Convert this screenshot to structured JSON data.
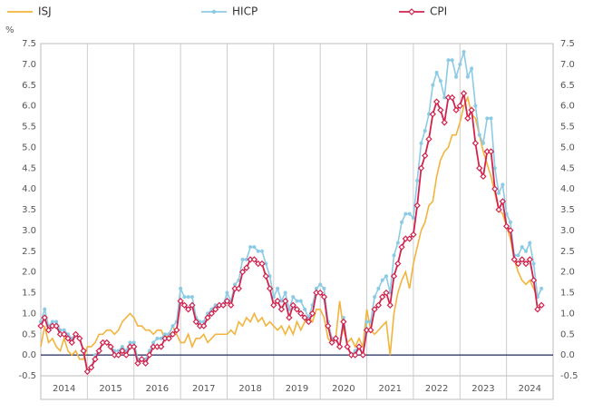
{
  "chart_data": {
    "type": "line",
    "ylabel": "%",
    "x": [
      2014,
      2014.083,
      2014.167,
      2014.25,
      2014.333,
      2014.417,
      2014.5,
      2014.583,
      2014.667,
      2014.75,
      2014.833,
      2014.917,
      2015,
      2015.083,
      2015.167,
      2015.25,
      2015.333,
      2015.417,
      2015.5,
      2015.583,
      2015.667,
      2015.75,
      2015.833,
      2015.917,
      2016,
      2016.083,
      2016.167,
      2016.25,
      2016.333,
      2016.417,
      2016.5,
      2016.583,
      2016.667,
      2016.75,
      2016.833,
      2016.917,
      2017,
      2017.083,
      2017.167,
      2017.25,
      2017.333,
      2017.417,
      2017.5,
      2017.583,
      2017.667,
      2017.75,
      2017.833,
      2017.917,
      2018,
      2018.083,
      2018.167,
      2018.25,
      2018.333,
      2018.417,
      2018.5,
      2018.583,
      2018.667,
      2018.75,
      2018.833,
      2018.917,
      2019,
      2019.083,
      2019.167,
      2019.25,
      2019.333,
      2019.417,
      2019.5,
      2019.583,
      2019.667,
      2019.75,
      2019.833,
      2019.917,
      2020,
      2020.083,
      2020.167,
      2020.25,
      2020.333,
      2020.417,
      2020.5,
      2020.583,
      2020.667,
      2020.75,
      2020.833,
      2020.917,
      2021,
      2021.083,
      2021.167,
      2021.25,
      2021.333,
      2021.417,
      2021.5,
      2021.583,
      2021.667,
      2021.75,
      2021.833,
      2021.917,
      2022,
      2022.083,
      2022.167,
      2022.25,
      2022.333,
      2022.417,
      2022.5,
      2022.583,
      2022.667,
      2022.75,
      2022.833,
      2022.917,
      2023,
      2023.083,
      2023.167,
      2023.25,
      2023.333,
      2023.417,
      2023.5,
      2023.583,
      2023.667,
      2023.75,
      2023.833,
      2023.917,
      2024,
      2024.083,
      2024.167,
      2024.25,
      2024.333,
      2024.417,
      2024.5,
      2024.583,
      2024.667,
      2024.75
    ],
    "series": [
      {
        "name": "ISJ",
        "color": "#f2b43c",
        "marker": "none",
        "values": [
          0.2,
          0.7,
          0.3,
          0.4,
          0.2,
          0.1,
          0.4,
          0.1,
          0.0,
          0.1,
          -0.1,
          -0.1,
          0.2,
          0.2,
          0.3,
          0.5,
          0.5,
          0.6,
          0.6,
          0.5,
          0.6,
          0.8,
          0.9,
          1.0,
          0.9,
          0.7,
          0.7,
          0.6,
          0.6,
          0.5,
          0.6,
          0.6,
          0.4,
          0.5,
          0.7,
          0.5,
          0.3,
          0.3,
          0.5,
          0.2,
          0.4,
          0.4,
          0.5,
          0.3,
          0.4,
          0.5,
          0.5,
          0.5,
          0.5,
          0.6,
          0.5,
          0.8,
          0.7,
          0.9,
          0.8,
          1.0,
          0.8,
          0.9,
          0.7,
          0.8,
          0.7,
          0.6,
          0.7,
          0.5,
          0.7,
          0.5,
          0.8,
          0.6,
          0.8,
          0.9,
          0.8,
          1.1,
          1.1,
          0.9,
          0.4,
          0.3,
          0.4,
          1.3,
          0.6,
          0.3,
          0.4,
          0.2,
          0.4,
          0.2,
          1.1,
          0.6,
          0.5,
          0.6,
          0.7,
          0.8,
          0.0,
          1.0,
          1.5,
          1.8,
          2.0,
          1.6,
          2.2,
          2.6,
          3.0,
          3.2,
          3.6,
          3.7,
          4.3,
          4.7,
          4.9,
          5.0,
          5.3,
          5.3,
          5.6,
          6.0,
          6.2,
          5.8,
          5.7,
          5.3,
          4.9,
          4.6,
          4.3,
          3.9,
          3.5,
          3.4,
          3.1,
          2.8,
          2.3,
          2.0,
          1.8,
          1.7,
          1.8,
          1.6,
          1.4,
          1.6
        ]
      },
      {
        "name": "HICP",
        "color": "#8ccbe6",
        "marker": "circle",
        "values": [
          0.8,
          1.1,
          0.7,
          0.8,
          0.8,
          0.6,
          0.6,
          0.5,
          0.4,
          0.5,
          0.4,
          0.1,
          -0.4,
          -0.3,
          0.0,
          0.1,
          0.3,
          0.3,
          0.2,
          0.1,
          0.1,
          0.2,
          0.1,
          0.3,
          0.3,
          -0.1,
          -0.1,
          -0.1,
          0.1,
          0.3,
          0.4,
          0.4,
          0.5,
          0.5,
          0.7,
          0.8,
          1.6,
          1.4,
          1.4,
          1.4,
          0.9,
          0.8,
          0.8,
          1.0,
          1.1,
          1.2,
          1.2,
          1.2,
          1.5,
          1.3,
          1.7,
          1.8,
          2.3,
          2.3,
          2.6,
          2.6,
          2.5,
          2.5,
          2.2,
          1.9,
          1.4,
          1.6,
          1.3,
          1.5,
          1.1,
          1.4,
          1.3,
          1.3,
          1.1,
          0.9,
          1.2,
          1.6,
          1.7,
          1.6,
          0.8,
          0.4,
          0.4,
          0.2,
          0.9,
          0.2,
          0.0,
          0.1,
          0.2,
          0.0,
          0.8,
          0.8,
          1.4,
          1.6,
          1.8,
          1.9,
          1.5,
          2.4,
          2.7,
          3.2,
          3.4,
          3.4,
          3.3,
          4.2,
          5.1,
          5.4,
          5.8,
          6.5,
          6.8,
          6.6,
          6.2,
          7.1,
          7.1,
          6.7,
          7.0,
          7.3,
          6.7,
          6.9,
          6.0,
          5.3,
          5.1,
          5.7,
          5.7,
          4.5,
          3.9,
          4.1,
          3.4,
          3.2,
          2.4,
          2.4,
          2.6,
          2.5,
          2.7,
          2.2,
          1.4,
          1.6
        ]
      },
      {
        "name": "CPI",
        "color": "#d1234d",
        "marker": "diamond",
        "values": [
          0.7,
          0.9,
          0.6,
          0.7,
          0.7,
          0.5,
          0.5,
          0.4,
          0.3,
          0.5,
          0.4,
          0.1,
          -0.4,
          -0.3,
          -0.1,
          0.1,
          0.3,
          0.3,
          0.2,
          0.0,
          0.0,
          0.1,
          0.0,
          0.2,
          0.2,
          -0.2,
          -0.1,
          -0.2,
          0.0,
          0.2,
          0.2,
          0.2,
          0.4,
          0.4,
          0.5,
          0.6,
          1.3,
          1.2,
          1.1,
          1.2,
          0.8,
          0.7,
          0.7,
          0.9,
          1.0,
          1.1,
          1.2,
          1.2,
          1.3,
          1.2,
          1.6,
          1.6,
          2.0,
          2.1,
          2.3,
          2.3,
          2.2,
          2.2,
          1.9,
          1.6,
          1.2,
          1.3,
          1.1,
          1.3,
          0.9,
          1.2,
          1.1,
          1.0,
          0.9,
          0.8,
          1.0,
          1.5,
          1.5,
          1.4,
          0.7,
          0.3,
          0.4,
          0.2,
          0.8,
          0.2,
          0.0,
          0.0,
          0.2,
          0.0,
          0.6,
          0.6,
          1.1,
          1.2,
          1.4,
          1.5,
          1.2,
          1.9,
          2.2,
          2.6,
          2.8,
          2.8,
          2.9,
          3.6,
          4.5,
          4.8,
          5.2,
          5.8,
          6.1,
          5.9,
          5.6,
          6.2,
          6.2,
          5.9,
          6.0,
          6.3,
          5.7,
          5.9,
          5.1,
          4.5,
          4.3,
          4.9,
          4.9,
          4.0,
          3.5,
          3.7,
          3.1,
          3.0,
          2.3,
          2.2,
          2.3,
          2.2,
          2.3,
          1.8,
          1.1,
          1.2
        ]
      }
    ],
    "xlim": [
      2014,
      2025
    ],
    "xticks": [
      {
        "value": 2014.5,
        "label": "2014"
      },
      {
        "value": 2015.5,
        "label": "2015"
      },
      {
        "value": 2016.5,
        "label": "2016"
      },
      {
        "value": 2017.5,
        "label": "2017"
      },
      {
        "value": 2018.5,
        "label": "2018"
      },
      {
        "value": 2019.5,
        "label": "2019"
      },
      {
        "value": 2020.5,
        "label": "2020"
      },
      {
        "value": 2021.5,
        "label": "2021"
      },
      {
        "value": 2022.5,
        "label": "2022"
      },
      {
        "value": 2023.5,
        "label": "2023"
      },
      {
        "value": 2024.5,
        "label": "2024"
      }
    ],
    "ylim": [
      -0.5,
      7.5
    ],
    "yticks": [
      -0.5,
      {
        "value": 0,
        "label": "0.0"
      },
      0.5,
      {
        "value": 1,
        "label": "1.0"
      },
      1.5,
      {
        "value": 2,
        "label": "2.0"
      },
      2.5,
      {
        "value": 3,
        "label": "3.0"
      },
      3.5,
      {
        "value": 4,
        "label": "4.0"
      },
      4.5,
      {
        "value": 5,
        "label": "5.0"
      },
      5.5,
      {
        "value": 6,
        "label": "6.0"
      },
      6.5,
      {
        "value": 7,
        "label": "7.0"
      },
      7.5
    ],
    "y2lim": [
      -0.5,
      7.5
    ],
    "y2ticks": [
      -0.5,
      {
        "value": 0,
        "label": "0.0"
      },
      0.5,
      {
        "value": 1,
        "label": "1.0"
      },
      1.5,
      {
        "value": 2,
        "label": "2.0"
      },
      2.5,
      {
        "value": 3,
        "label": "3.0"
      },
      3.5,
      {
        "value": 4,
        "label": "4.0"
      },
      4.5,
      {
        "value": 5,
        "label": "5.0"
      },
      5.5,
      {
        "value": 6,
        "label": "6.0"
      },
      6.5,
      {
        "value": 7,
        "label": "7.0"
      },
      7.5
    ],
    "legend": "top"
  }
}
